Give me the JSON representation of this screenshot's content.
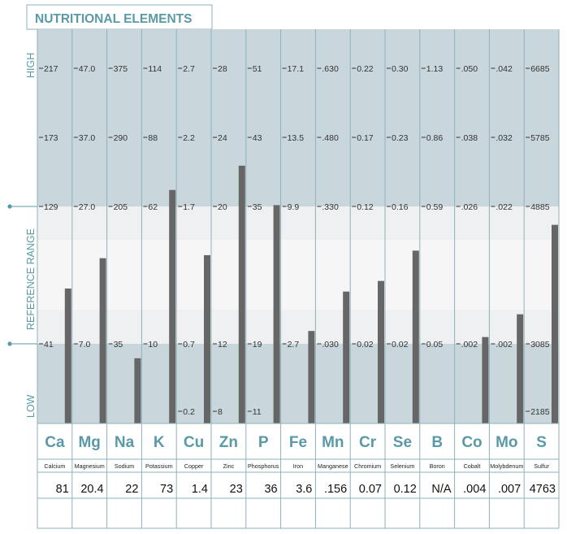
{
  "title": "NUTRITIONAL ELEMENTS",
  "zones": {
    "high": "HIGH",
    "reference": "REFERENCE RANGE",
    "low": "LOW"
  },
  "colors": {
    "accent": "#5a9aa6",
    "band_outer": "#c9d6dc",
    "band_middle": "#eef0f1",
    "band_center": "#f6f6f6",
    "bar": "#666666",
    "grid": "#8fb2ba"
  },
  "chart_data": {
    "type": "bar",
    "title": "NUTRITIONAL ELEMENTS",
    "xlabel": "",
    "ylabel": "",
    "grid": true,
    "categories": [
      "Ca",
      "Mg",
      "Na",
      "K",
      "Cu",
      "Zn",
      "P",
      "Fe",
      "Mn",
      "Cr",
      "Se",
      "B",
      "Co",
      "Mo",
      "S"
    ],
    "names": [
      "Calcium",
      "Magnesium",
      "Sodium",
      "Potassium",
      "Copper",
      "Zinc",
      "Phosphorus",
      "Iron",
      "Manganese",
      "Chromium",
      "Selenium",
      "Boron",
      "Cobalt",
      "Molybdenum",
      "Sulfur"
    ],
    "value_labels": [
      "81",
      "20.4",
      "22",
      "73",
      "1.4",
      "23",
      "36",
      "3.6",
      ".156",
      "0.07",
      "0.12",
      "N/A",
      ".004",
      ".007",
      "4763"
    ],
    "values": [
      81,
      20.4,
      22,
      73,
      1.4,
      23,
      36,
      3.6,
      0.156,
      0.07,
      0.12,
      null,
      0.004,
      0.007,
      4763
    ],
    "scale_labels": [
      {
        "217": "217",
        "173": "173",
        "129": "129",
        "41": "41"
      },
      {
        "217": "47.0",
        "173": "37.0",
        "129": "27.0",
        "41": "7.0"
      },
      {
        "217": "375",
        "173": "290",
        "129": "205",
        "41": "35"
      },
      {
        "217": "114",
        "173": "88",
        "129": "62",
        "41": "10"
      },
      {
        "217": "2.7",
        "173": "2.2",
        "129": "1.7",
        "41": "0.7",
        "0": "0.2"
      },
      {
        "217": "28",
        "173": "24",
        "129": "20",
        "41": "12",
        "0": "8"
      },
      {
        "217": "51",
        "173": "43",
        "129": "35",
        "41": "19",
        "0": "11"
      },
      {
        "217": "17.1",
        "173": "13.5",
        "129": "9.9",
        "41": "2.7"
      },
      {
        "217": ".630",
        "173": ".480",
        "129": ".330",
        "41": ".030"
      },
      {
        "217": "0.22",
        "173": "0.17",
        "129": "0.12",
        "41": "0.02"
      },
      {
        "217": "0.30",
        "173": "0.23",
        "129": "0.16",
        "41": "0.02"
      },
      {
        "217": "1.13",
        "173": "0.86",
        "129": "0.59",
        "41": "0.05"
      },
      {
        "217": ".050",
        "173": ".038",
        "129": ".026",
        "41": ".002"
      },
      {
        "217": ".042",
        "173": ".032",
        "129": ".022",
        "41": ".002"
      },
      {
        "217": "6685",
        "173": "5785",
        "129": "4885",
        "41": "3085",
        "0": "2185"
      }
    ],
    "scale_levels": [
      0,
      41,
      129,
      173,
      217
    ],
    "bar_levels": [
      89,
      109,
      43,
      154,
      111,
      170,
      144,
      61,
      87,
      94,
      114,
      null,
      57,
      72,
      131
    ],
    "ylim": [
      0,
      260
    ]
  }
}
